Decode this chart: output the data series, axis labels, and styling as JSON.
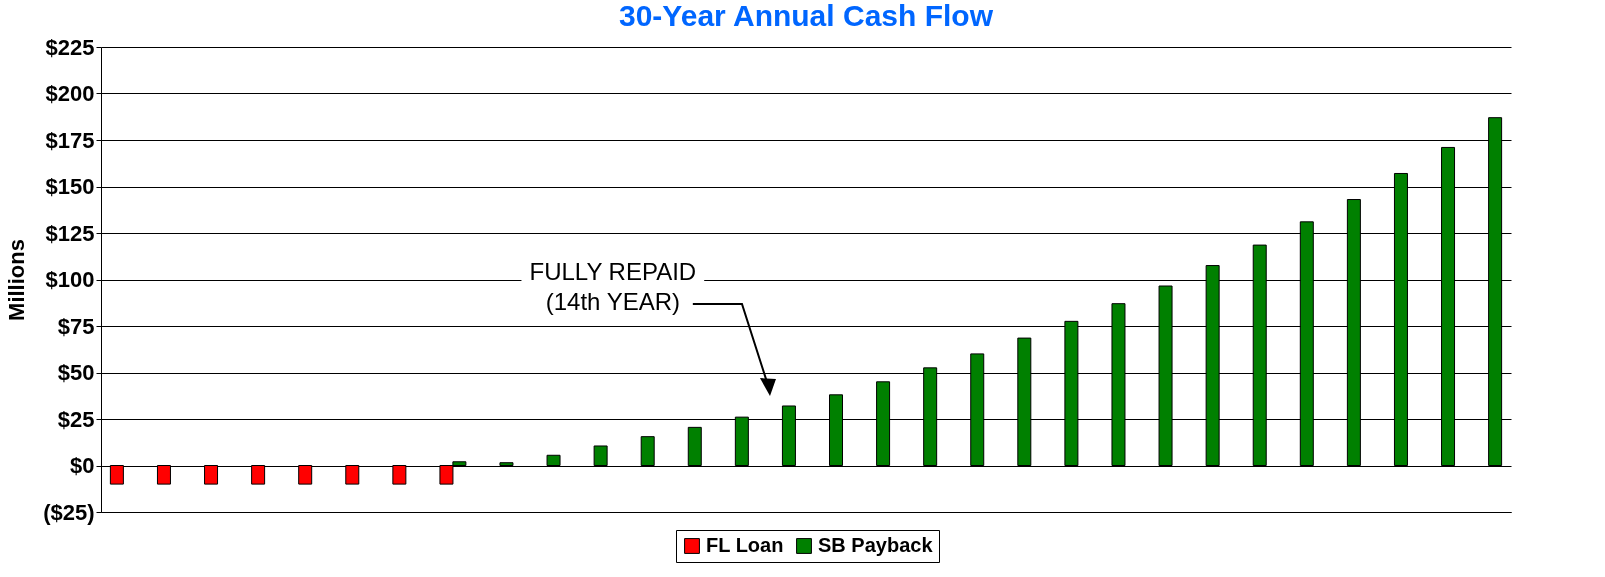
{
  "chart_data": {
    "type": "bar",
    "title": "30-Year Annual Cash Flow",
    "ylabel": "Millions",
    "categories": [
      null,
      null,
      null,
      null,
      null,
      null,
      null,
      null,
      null,
      null,
      null,
      null,
      null,
      null,
      null,
      null,
      null,
      null,
      null,
      null,
      null,
      null,
      null,
      null,
      null,
      null,
      null,
      null,
      null,
      null
    ],
    "ylim": [
      -25,
      225
    ],
    "yticks": [
      {
        "value": -25,
        "label": "($25)"
      },
      {
        "value": 0,
        "label": "$0"
      },
      {
        "value": 25,
        "label": "$25"
      },
      {
        "value": 50,
        "label": "$50"
      },
      {
        "value": 75,
        "label": "$75"
      },
      {
        "value": 100,
        "label": "$100"
      },
      {
        "value": 125,
        "label": "$125"
      },
      {
        "value": 150,
        "label": "$150"
      },
      {
        "value": 175,
        "label": "$175"
      },
      {
        "value": 200,
        "label": "$200"
      },
      {
        "value": 225,
        "label": "$225"
      }
    ],
    "tick_labels": "y",
    "grid": "y",
    "legend": "bottom",
    "series": [
      {
        "name": "FL Loan",
        "color": "#ff0000",
        "values": [
          -10,
          -10,
          -10,
          -10,
          -10,
          -10,
          -10,
          -10,
          null,
          null,
          null,
          null,
          null,
          null,
          null,
          null,
          null,
          null,
          null,
          null,
          null,
          null,
          null,
          null,
          null,
          null,
          null,
          null,
          null,
          null
        ]
      },
      {
        "name": "SB Payback",
        "color": "#008000",
        "values": [
          null,
          null,
          null,
          null,
          null,
          null,
          null,
          2,
          1.5,
          5.5,
          10.5,
          15.5,
          20.5,
          26,
          32,
          38,
          45,
          52.5,
          60,
          68.5,
          77.5,
          87,
          96.5,
          107.5,
          118.5,
          131,
          143,
          157,
          171,
          187
        ]
      }
    ],
    "annotations": [
      "FULLY REPAID\n(14th YEAR)"
    ]
  }
}
